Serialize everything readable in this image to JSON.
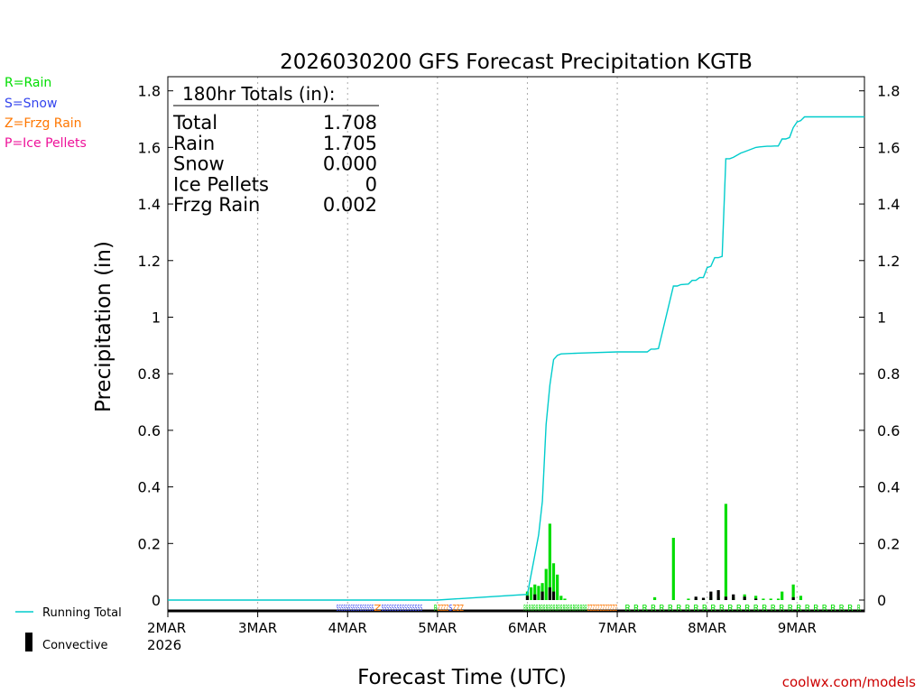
{
  "chart_data": {
    "type": "bar",
    "title": "2026030200 GFS Forecast Precipitation KGTB",
    "xlabel": "Forecast Time (UTC)",
    "ylabel": "Precipitation (in)",
    "ylim": [
      0,
      1.85
    ],
    "yticks": [
      "0",
      "0.2",
      "0.4",
      "0.6",
      "0.8",
      "1",
      "1.2",
      "1.4",
      "1.6",
      "1.8"
    ],
    "xrange_hours": [
      0,
      186
    ],
    "x_ticks": [
      {
        "hour": 0,
        "label": "2MAR"
      },
      {
        "hour": 24,
        "label": "3MAR"
      },
      {
        "hour": 48,
        "label": "4MAR"
      },
      {
        "hour": 72,
        "label": "5MAR"
      },
      {
        "hour": 96,
        "label": "6MAR"
      },
      {
        "hour": 120,
        "label": "7MAR"
      },
      {
        "hour": 144,
        "label": "8MAR"
      },
      {
        "hour": 168,
        "label": "9MAR"
      }
    ],
    "year_label": "2026",
    "legend": {
      "types": [
        {
          "label": "R=Rain",
          "color": "#00dd00"
        },
        {
          "label": "S=Snow",
          "color": "#3344ee"
        },
        {
          "label": "Z=Frzg Rain",
          "color": "#ff7700"
        },
        {
          "label": "P=Ice Pellets",
          "color": "#ee1199"
        }
      ],
      "running_total": "Running Total",
      "convective": "Convective",
      "running_total_color": "#00cccc"
    },
    "totals": {
      "heading": "180hr Totals (in):",
      "rows": [
        {
          "label": "Total",
          "value": "1.708"
        },
        {
          "label": "Rain",
          "value": "1.705"
        },
        {
          "label": "Snow",
          "value": "0.000"
        },
        {
          "label": "Ice Pellets",
          "value": "0"
        },
        {
          "label": "Frzg Rain",
          "value": "0.002"
        }
      ]
    },
    "series": [
      {
        "name": "Running Total",
        "hours": [
          0,
          72,
          96,
          97,
          98,
          99,
          100,
          101,
          102,
          103,
          104,
          105,
          110,
          120,
          128,
          129,
          130,
          131,
          135,
          136,
          137,
          139,
          140,
          141,
          142,
          143,
          144,
          145,
          146,
          147,
          148,
          149,
          150,
          151,
          153,
          154,
          157,
          158,
          159,
          160,
          161,
          162,
          163,
          164,
          165,
          166,
          167,
          168,
          169,
          170,
          186
        ],
        "values": [
          0,
          0,
          0.02,
          0.09,
          0.16,
          0.23,
          0.35,
          0.62,
          0.76,
          0.85,
          0.865,
          0.87,
          0.873,
          0.877,
          0.877,
          0.887,
          0.887,
          0.889,
          1.11,
          1.11,
          1.115,
          1.117,
          1.13,
          1.13,
          1.14,
          1.14,
          1.175,
          1.18,
          1.21,
          1.21,
          1.215,
          1.56,
          1.56,
          1.565,
          1.58,
          1.585,
          1.6,
          1.602,
          1.603,
          1.604,
          1.604,
          1.605,
          1.605,
          1.63,
          1.63,
          1.635,
          1.67,
          1.69,
          1.695,
          1.708,
          1.708
        ]
      },
      {
        "name": "Rain (total, per period)",
        "hours": [
          96,
          97,
          98,
          99,
          100,
          101,
          102,
          103,
          104,
          105,
          106,
          130,
          135,
          139,
          141,
          143,
          145,
          147,
          149,
          151,
          154,
          157,
          159,
          161,
          163,
          164,
          167,
          169
        ],
        "values": [
          0.03,
          0.045,
          0.055,
          0.05,
          0.06,
          0.11,
          0.27,
          0.13,
          0.09,
          0.015,
          0.005,
          0.01,
          0.22,
          0.005,
          0.005,
          0.005,
          0.01,
          0.01,
          0.34,
          0.01,
          0.02,
          0.015,
          0.005,
          0.005,
          0.005,
          0.03,
          0.055,
          0.015
        ]
      },
      {
        "name": "Convective",
        "hours": [
          96,
          98,
          100,
          102,
          103,
          141,
          143,
          145,
          147,
          149,
          151,
          154,
          157,
          167
        ],
        "values": [
          0.015,
          0.02,
          0.03,
          0.045,
          0.03,
          0.012,
          0.008,
          0.03,
          0.035,
          0.012,
          0.02,
          0.012,
          0.005,
          0.01
        ]
      }
    ],
    "ptype_strip": [
      {
        "from": 45,
        "to": 55,
        "text": "SSSSSSSSSSSSSSSS",
        "color": "#3344ee"
      },
      {
        "from": 55,
        "to": 57,
        "text": "Z",
        "color": "#ff7700"
      },
      {
        "from": 57,
        "to": 68,
        "text": "SSSSSSSSSSSSSSSS",
        "color": "#3344ee"
      },
      {
        "from": 71,
        "to": 72,
        "text": "R",
        "color": "#00dd00"
      },
      {
        "from": 72,
        "to": 75,
        "text": "ZZZZ",
        "color": "#ff7700"
      },
      {
        "from": 75,
        "to": 76,
        "text": "S",
        "color": "#3344ee"
      },
      {
        "from": 76,
        "to": 79,
        "text": "ZZZ",
        "color": "#ff7700"
      },
      {
        "from": 95,
        "to": 112,
        "text": "RRRRRRRRRRRRRRRRRRRRRRRRRR",
        "color": "#00dd00"
      },
      {
        "from": 112,
        "to": 120,
        "text": "ZZZZZZZZZZZZ",
        "color": "#ff7700"
      },
      {
        "from": 122,
        "to": 183,
        "text": "R R R R R R R R R R R R R R R R R R R R R R R R R R R",
        "color": "#00dd00"
      },
      {
        "from": 184,
        "to": 185,
        "text": "R",
        "color": "#00dd00"
      }
    ],
    "attribution": "coolwx.com/models"
  }
}
